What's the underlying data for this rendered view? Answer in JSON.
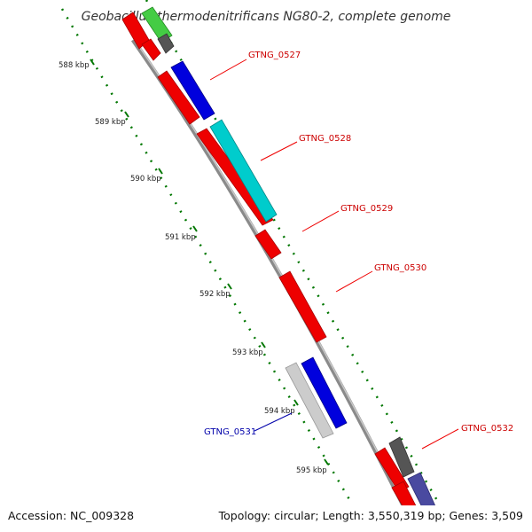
{
  "title": "Geobacillus thermodenitrificans NG80-2, complete genome",
  "footer": {
    "accession": "Accession: NC_009328",
    "summary": "Topology: circular; Length: 3,550,319 bp; Genes: 3,509"
  },
  "ticks": [
    "588 kbp",
    "589 kbp",
    "590 kbp",
    "591 kbp",
    "592 kbp",
    "593 kbp",
    "594 kbp",
    "595 kbp"
  ],
  "genes": [
    {
      "label": "GTNG_0527",
      "color": "#cc0000"
    },
    {
      "label": "GTNG_0528",
      "color": "#cc0000"
    },
    {
      "label": "GTNG_0529",
      "color": "#cc0000"
    },
    {
      "label": "GTNG_0530",
      "color": "#cc0000"
    },
    {
      "label": "GTNG_0531",
      "color": "#0000aa"
    },
    {
      "label": "GTNG_0532",
      "color": "#cc0000"
    }
  ],
  "colors": {
    "backbone": "#8a8a8a",
    "tick_dots": "#007700",
    "cds_red": "#ee0000",
    "blue": "#0000dd",
    "cyan": "#00cccc",
    "green": "#44cc44",
    "gray": "#555555",
    "light_gray": "#cccccc",
    "slate_blue": "#4a4aa0"
  }
}
